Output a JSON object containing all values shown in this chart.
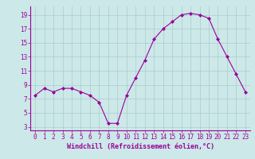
{
  "x": [
    0,
    1,
    2,
    3,
    4,
    5,
    6,
    7,
    8,
    9,
    10,
    11,
    12,
    13,
    14,
    15,
    16,
    17,
    18,
    19,
    20,
    21,
    22,
    23
  ],
  "y": [
    7.5,
    8.5,
    8.0,
    8.5,
    8.5,
    8.0,
    7.5,
    6.5,
    3.5,
    3.5,
    7.5,
    10.0,
    12.5,
    15.5,
    17.0,
    18.0,
    19.0,
    19.2,
    19.0,
    18.5,
    15.5,
    13.0,
    10.5,
    8.0
  ],
  "line_color": "#990099",
  "marker": "D",
  "marker_size": 2,
  "bg_color": "#cce8e8",
  "grid_color": "#aacccc",
  "xlabel": "Windchill (Refroidissement éolien,°C)",
  "xlabel_color": "#990099",
  "tick_color": "#990099",
  "axis_color": "#990099",
  "xlim": [
    -0.5,
    23.5
  ],
  "ylim": [
    2.5,
    20.2
  ],
  "yticks": [
    3,
    5,
    7,
    9,
    11,
    13,
    15,
    17,
    19
  ],
  "xtick_labels": [
    "0",
    "1",
    "2",
    "3",
    "4",
    "5",
    "6",
    "7",
    "8",
    "9",
    "10",
    "11",
    "12",
    "13",
    "14",
    "15",
    "16",
    "17",
    "18",
    "19",
    "20",
    "21",
    "22",
    "23"
  ],
  "label_fontsize": 6,
  "tick_fontsize": 5.5
}
